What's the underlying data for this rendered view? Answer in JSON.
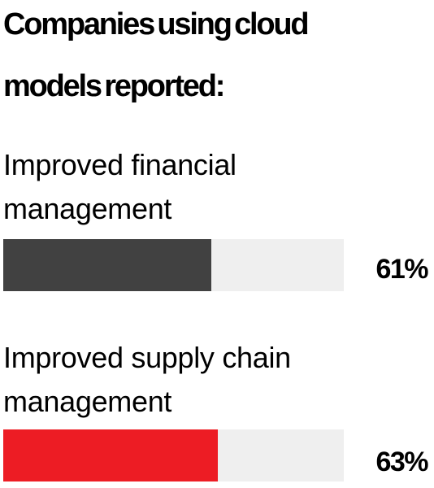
{
  "chart_data": {
    "type": "bar",
    "title": "Companies using cloud models reported:",
    "orientation": "horizontal",
    "xlim": [
      0,
      100
    ],
    "grid": false,
    "categories": [
      "Improved financial management",
      "Improved supply chain management"
    ],
    "values": [
      61,
      63
    ],
    "value_labels": [
      "61%",
      "63%"
    ],
    "bar_colors": [
      "#414141",
      "#ed1c24"
    ],
    "track_color": "#efefef"
  },
  "title_lines": [
    "Companies using cloud",
    "models reported:"
  ],
  "bars": [
    {
      "label_lines": [
        "Improved financial",
        "management"
      ],
      "value": 61,
      "value_label": "61%",
      "color": "#414141"
    },
    {
      "label_lines": [
        "Improved supply chain",
        "management"
      ],
      "value": 63,
      "value_label": "63%",
      "color": "#ed1c24"
    }
  ]
}
